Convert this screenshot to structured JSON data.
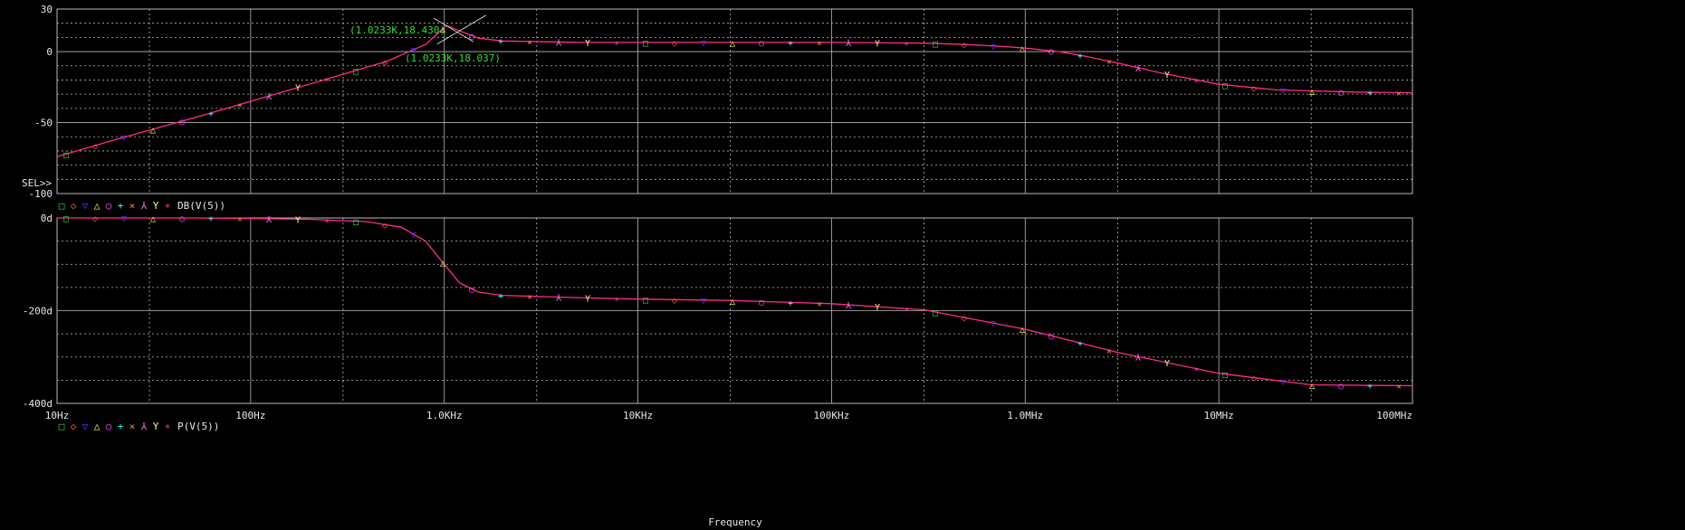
{
  "colors": {
    "background": "#000000",
    "grid": "#b8b8b8",
    "text": "#e8e8e8",
    "trace": "#ff2b8a",
    "cursor_label": "#33dd33",
    "markers": [
      "#33dd33",
      "#ff5533",
      "#6633ff",
      "#ffff44",
      "#ff44ff",
      "#33ffff",
      "#ff8833",
      "#ff77ff",
      "#ffff88",
      "#ff33aa"
    ]
  },
  "marker_symbols": [
    "□",
    "◇",
    "▽",
    "△",
    "○",
    "+",
    "×",
    "⅄",
    "Y",
    "∗"
  ],
  "chart_data": [
    {
      "type": "line",
      "xscale": "log",
      "xlim": [
        10,
        100000000
      ],
      "ylim": [
        -100,
        30
      ],
      "yticks": [
        30,
        0,
        -50,
        -100
      ],
      "ytick_labels": [
        "30",
        "0",
        "-50",
        "-100"
      ],
      "sel_label": "SEL>>",
      "series": [
        {
          "name": "DB(V(5))",
          "x": [
            10,
            20,
            50,
            100,
            200,
            500,
            800,
            1023.3,
            1500,
            2000,
            5000,
            10000,
            50000,
            100000,
            300000,
            500000,
            800000,
            1000000,
            1500000,
            2000000,
            3000000,
            5000000,
            10000000,
            20000000,
            50000000,
            100000000
          ],
          "y": [
            -74,
            -62,
            -47,
            -35,
            -23,
            -7,
            5,
            18.4,
            9.5,
            7.5,
            6.5,
            6.5,
            6.5,
            6.5,
            6.0,
            5.0,
            3.5,
            2.5,
            0,
            -3,
            -8,
            -15,
            -23,
            -27,
            -28.5,
            -29
          ]
        }
      ],
      "annotations": [
        {
          "x": 1023.3,
          "y": 18.43,
          "label": "(1.0233K,18.430)"
        },
        {
          "x": 1023.3,
          "y": 18.037,
          "label": "(1.0233K,18.037)"
        }
      ]
    },
    {
      "type": "line",
      "xscale": "log",
      "xlim": [
        10,
        100000000
      ],
      "ylim": [
        -400,
        0
      ],
      "yticks": [
        0,
        -200,
        -400
      ],
      "ytick_labels": [
        "0d",
        "-200d",
        "-400d"
      ],
      "xticks": [
        10,
        100,
        1000,
        10000,
        100000,
        1000000,
        10000000,
        100000000
      ],
      "xtick_labels": [
        "10Hz",
        "100Hz",
        "1.0KHz",
        "10KHz",
        "100KHz",
        "1.0MHz",
        "10MHz",
        "100MHz"
      ],
      "xlabel": "Frequency",
      "series": [
        {
          "name": "P(V(5))",
          "x": [
            10,
            50,
            100,
            200,
            400,
            600,
            800,
            1000,
            1200,
            1500,
            2000,
            5000,
            10000,
            30000,
            100000,
            300000,
            1000000,
            3000000,
            10000000,
            30000000,
            100000000
          ],
          "y": [
            0,
            0,
            -1,
            -3,
            -8,
            -20,
            -50,
            -100,
            -140,
            -160,
            -167,
            -172,
            -175,
            -178,
            -185,
            -198,
            -240,
            -290,
            -335,
            -360,
            -362
          ]
        }
      ]
    }
  ]
}
